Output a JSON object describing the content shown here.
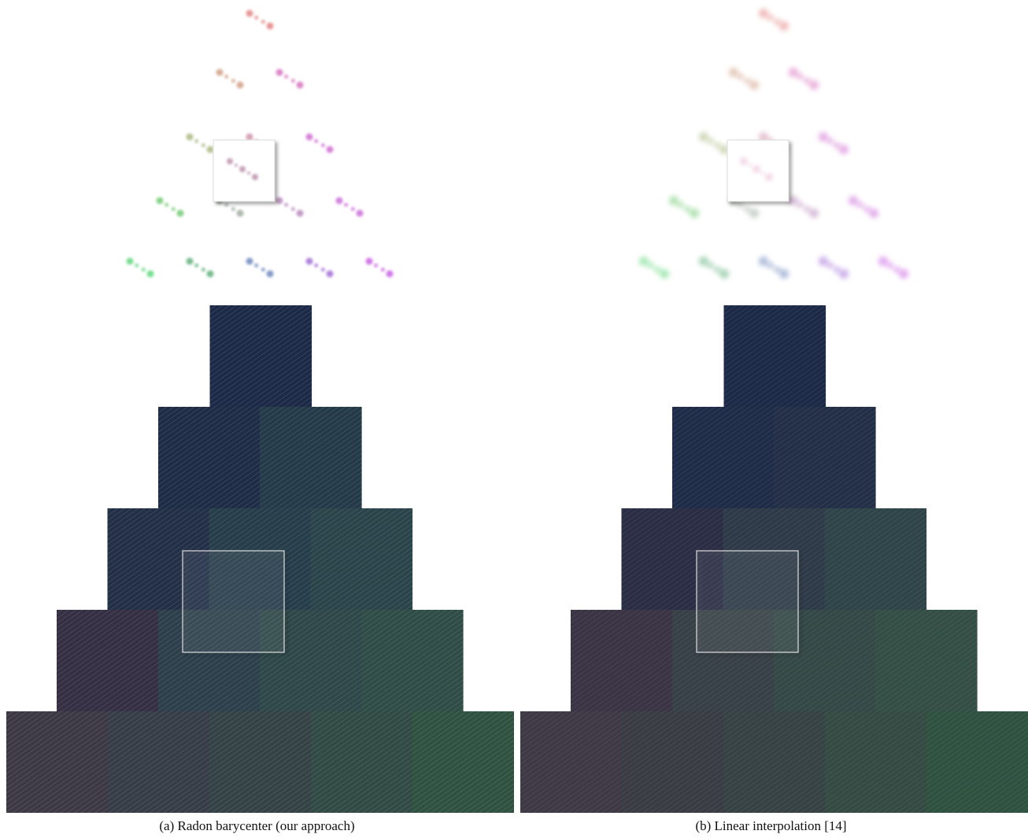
{
  "figure": {
    "panels": [
      {
        "id": "a",
        "caption": "(a) Radon barycenter (our approach)",
        "blend": "sharp",
        "tile_colors": [
          [
            "#1c2a48"
          ],
          [
            "#1f2c46",
            "#243a48"
          ],
          [
            "#222f46",
            "#263d4a",
            "#2a444a"
          ],
          [
            "#342f42",
            "#2c3f4a",
            "#2e4748",
            "#304c46"
          ],
          [
            "#3d3944",
            "#373d46",
            "#344246",
            "#324a44",
            "#2f5240"
          ]
        ]
      },
      {
        "id": "b",
        "caption": "(b) Linear interpolation [14]",
        "blend": "smooth",
        "tile_colors": [
          [
            "#1c2a48"
          ],
          [
            "#1f2c48",
            "#222f46"
          ],
          [
            "#2a2d44",
            "#2e3a48",
            "#2f4448"
          ],
          [
            "#3a3444",
            "#374046",
            "#344846",
            "#334e44"
          ],
          [
            "#3e3944",
            "#3a3c44",
            "#374244",
            "#344a42",
            "#2f5240"
          ]
        ]
      }
    ],
    "magnifier_color": "#dddddd"
  }
}
